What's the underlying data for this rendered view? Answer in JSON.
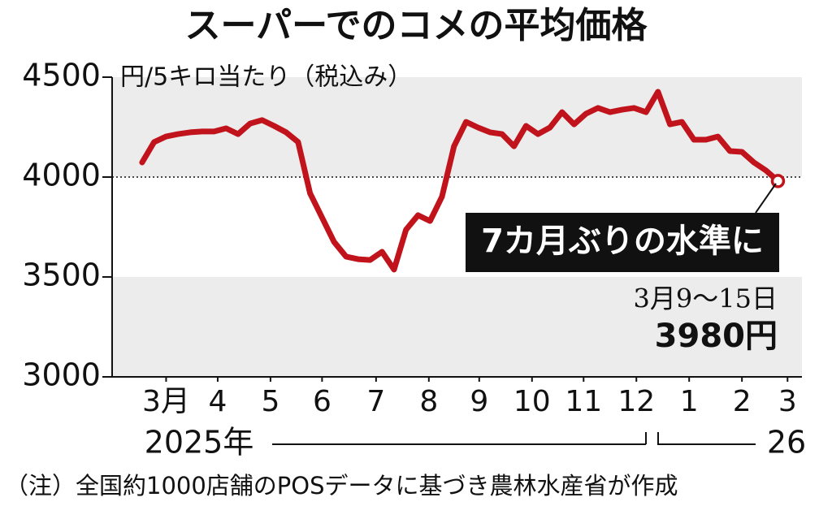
{
  "chart_data": {
    "type": "line",
    "title": "スーパーでのコメの平均価格",
    "unit_label": "円/5キロ当たり（税込み）",
    "year_labels": [
      "2025年",
      "26"
    ],
    "annotation": "7カ月ぶりの水準に",
    "last_point_date": "3月9～15日",
    "last_point_label": "3980円",
    "note": "（注）全国約1000店舗のPOSデータに基づき農林水産省が作成",
    "color": "#c1131b",
    "x": [
      0,
      1,
      2,
      3,
      4,
      5,
      6,
      7,
      8,
      9,
      10,
      11,
      12,
      13,
      14,
      15,
      16,
      17,
      18,
      19,
      20,
      21,
      22,
      23,
      24,
      25,
      26,
      27,
      28,
      29,
      30,
      31,
      32,
      33,
      34,
      35,
      36,
      37,
      38,
      39,
      40,
      41,
      42,
      43,
      44,
      45,
      46,
      47,
      48,
      49,
      50,
      51,
      52,
      53
    ],
    "values": [
      4073,
      4175,
      4203,
      4215,
      4224,
      4228,
      4228,
      4244,
      4215,
      4268,
      4285,
      4256,
      4224,
      4175,
      3919,
      3797,
      3675,
      3602,
      3589,
      3585,
      3626,
      3537,
      3736,
      3809,
      3780,
      3902,
      4154,
      4276,
      4248,
      4224,
      4215,
      4154,
      4256,
      4215,
      4248,
      4325,
      4264,
      4317,
      4346,
      4325,
      4337,
      4346,
      4325,
      4427,
      4264,
      4276,
      4187,
      4187,
      4203,
      4130,
      4126,
      4073,
      4033,
      3980
    ],
    "xlim": [
      -2.5,
      55
    ],
    "xticks": [
      {
        "value": 2,
        "label": "3月"
      },
      {
        "value": 6.3,
        "label": "4"
      },
      {
        "value": 10.7,
        "label": "5"
      },
      {
        "value": 15,
        "label": "6"
      },
      {
        "value": 19.5,
        "label": "7"
      },
      {
        "value": 23.9,
        "label": "8"
      },
      {
        "value": 28.1,
        "label": "9"
      },
      {
        "value": 32.5,
        "label": "10"
      },
      {
        "value": 36.8,
        "label": "11"
      },
      {
        "value": 41.2,
        "label": "12"
      },
      {
        "value": 45.6,
        "label": "1"
      },
      {
        "value": 50,
        "label": "2"
      },
      {
        "value": 53.8,
        "label": "3"
      }
    ],
    "ylim": [
      3000,
      4500
    ],
    "yticks": [
      3000,
      3500,
      4000,
      4500
    ],
    "bands": [
      [
        3000,
        3500
      ],
      [
        4000,
        4500
      ]
    ],
    "reference_line": 4000
  }
}
